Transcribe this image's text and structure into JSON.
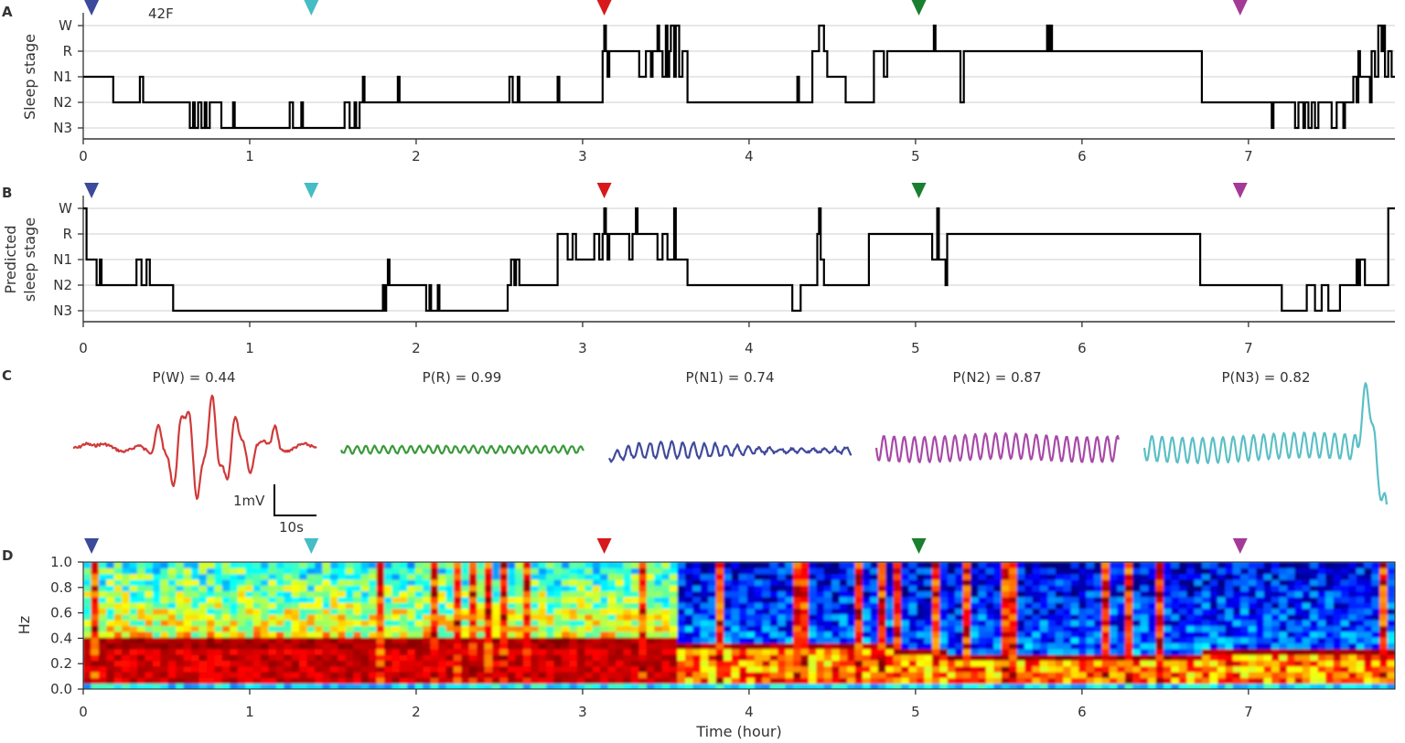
{
  "chart_data": [
    {
      "id": "A",
      "type": "line",
      "panel_label": "A",
      "title": "42F",
      "ylabel": "Sleep stage",
      "yticks": [
        "W",
        "R",
        "N1",
        "N2",
        "N3"
      ],
      "xticks": [
        0,
        1,
        2,
        3,
        4,
        5,
        6,
        7
      ],
      "xlim": [
        0,
        7.88
      ],
      "markers": [
        {
          "x": 0.05,
          "color": "#3b4a9a",
          "label": "N1"
        },
        {
          "x": 1.37,
          "color": "#46bcc4",
          "label": "N3"
        },
        {
          "x": 3.13,
          "color": "#d7191c",
          "label": "W"
        },
        {
          "x": 5.02,
          "color": "#1a7f2e",
          "label": "R"
        },
        {
          "x": 6.95,
          "color": "#a43a98",
          "label": "N2"
        }
      ],
      "hypnogram": [
        [
          0,
          2
        ],
        [
          0.18,
          3
        ],
        [
          0.34,
          2
        ],
        [
          0.36,
          3
        ],
        [
          0.64,
          4
        ],
        [
          0.66,
          3
        ],
        [
          0.67,
          4
        ],
        [
          0.69,
          3
        ],
        [
          0.71,
          4
        ],
        [
          0.73,
          3
        ],
        [
          0.74,
          4
        ],
        [
          0.76,
          3
        ],
        [
          0.83,
          4
        ],
        [
          0.9,
          3
        ],
        [
          0.91,
          4
        ],
        [
          1.24,
          3
        ],
        [
          1.26,
          4
        ],
        [
          1.31,
          3
        ],
        [
          1.32,
          4
        ],
        [
          1.57,
          3
        ],
        [
          1.6,
          4
        ],
        [
          1.63,
          3
        ],
        [
          1.64,
          4
        ],
        [
          1.66,
          3
        ],
        [
          1.68,
          2
        ],
        [
          1.69,
          3
        ],
        [
          1.89,
          2
        ],
        [
          1.9,
          3
        ],
        [
          2.56,
          2
        ],
        [
          2.58,
          3
        ],
        [
          2.61,
          2
        ],
        [
          2.62,
          3
        ],
        [
          2.85,
          2
        ],
        [
          2.86,
          3
        ],
        [
          3.12,
          1
        ],
        [
          3.13,
          0
        ],
        [
          3.14,
          1
        ],
        [
          3.15,
          2
        ],
        [
          3.16,
          1
        ],
        [
          3.34,
          2
        ],
        [
          3.38,
          1
        ],
        [
          3.41,
          2
        ],
        [
          3.42,
          1
        ],
        [
          3.45,
          0
        ],
        [
          3.46,
          1
        ],
        [
          3.48,
          2
        ],
        [
          3.5,
          0
        ],
        [
          3.51,
          2
        ],
        [
          3.52,
          1
        ],
        [
          3.53,
          0
        ],
        [
          3.55,
          2
        ],
        [
          3.56,
          0
        ],
        [
          3.58,
          2
        ],
        [
          3.6,
          1
        ],
        [
          3.63,
          3
        ],
        [
          4.29,
          2
        ],
        [
          4.3,
          3
        ],
        [
          4.38,
          1
        ],
        [
          4.42,
          0
        ],
        [
          4.45,
          1
        ],
        [
          4.47,
          2
        ],
        [
          4.58,
          3
        ],
        [
          4.75,
          1
        ],
        [
          4.81,
          2
        ],
        [
          4.83,
          1
        ],
        [
          5.11,
          0
        ],
        [
          5.12,
          1
        ],
        [
          5.27,
          3
        ],
        [
          5.29,
          1
        ],
        [
          5.79,
          0
        ],
        [
          5.8,
          1
        ],
        [
          5.81,
          0
        ],
        [
          5.82,
          1
        ],
        [
          6.72,
          3
        ],
        [
          7.14,
          4
        ],
        [
          7.15,
          3
        ],
        [
          7.28,
          4
        ],
        [
          7.3,
          3
        ],
        [
          7.33,
          4
        ],
        [
          7.34,
          3
        ],
        [
          7.36,
          4
        ],
        [
          7.38,
          3
        ],
        [
          7.4,
          4
        ],
        [
          7.42,
          3
        ],
        [
          7.5,
          4
        ],
        [
          7.53,
          3
        ],
        [
          7.57,
          4
        ],
        [
          7.58,
          3
        ],
        [
          7.63,
          2
        ],
        [
          7.65,
          3
        ],
        [
          7.66,
          1
        ],
        [
          7.67,
          2
        ],
        [
          7.73,
          3
        ],
        [
          7.74,
          1
        ],
        [
          7.76,
          2
        ],
        [
          7.78,
          0
        ],
        [
          7.8,
          1
        ],
        [
          7.81,
          0
        ],
        [
          7.82,
          2
        ],
        [
          7.84,
          1
        ],
        [
          7.86,
          2
        ],
        [
          7.88,
          2
        ]
      ]
    },
    {
      "id": "B",
      "type": "line",
      "panel_label": "B",
      "ylabel": "Predicted\nsleep stage",
      "ylabel_lines": [
        "Predicted",
        "sleep stage"
      ],
      "yticks": [
        "W",
        "R",
        "N1",
        "N2",
        "N3"
      ],
      "xticks": [
        0,
        1,
        2,
        3,
        4,
        5,
        6,
        7
      ],
      "xlim": [
        0,
        7.88
      ],
      "markers": [
        {
          "x": 0.05,
          "color": "#3b4a9a",
          "label": "N1"
        },
        {
          "x": 1.37,
          "color": "#46bcc4",
          "label": "N3"
        },
        {
          "x": 3.13,
          "color": "#d7191c",
          "label": "W"
        },
        {
          "x": 5.02,
          "color": "#1a7f2e",
          "label": "R"
        },
        {
          "x": 6.95,
          "color": "#a43a98",
          "label": "N2"
        }
      ],
      "hypnogram": [
        [
          0,
          0
        ],
        [
          0.02,
          2
        ],
        [
          0.08,
          3
        ],
        [
          0.1,
          2
        ],
        [
          0.11,
          3
        ],
        [
          0.32,
          2
        ],
        [
          0.35,
          3
        ],
        [
          0.38,
          2
        ],
        [
          0.4,
          3
        ],
        [
          0.54,
          4
        ],
        [
          1.8,
          3
        ],
        [
          1.81,
          4
        ],
        [
          1.82,
          3
        ],
        [
          1.83,
          2
        ],
        [
          1.84,
          3
        ],
        [
          2.06,
          4
        ],
        [
          2.08,
          3
        ],
        [
          2.09,
          4
        ],
        [
          2.13,
          3
        ],
        [
          2.14,
          4
        ],
        [
          2.55,
          3
        ],
        [
          2.57,
          2
        ],
        [
          2.59,
          3
        ],
        [
          2.6,
          2
        ],
        [
          2.62,
          3
        ],
        [
          2.85,
          1
        ],
        [
          2.91,
          2
        ],
        [
          2.94,
          1
        ],
        [
          2.96,
          2
        ],
        [
          3.07,
          1
        ],
        [
          3.1,
          2
        ],
        [
          3.12,
          1
        ],
        [
          3.13,
          0
        ],
        [
          3.14,
          1
        ],
        [
          3.15,
          2
        ],
        [
          3.16,
          1
        ],
        [
          3.28,
          2
        ],
        [
          3.3,
          1
        ],
        [
          3.32,
          0
        ],
        [
          3.33,
          1
        ],
        [
          3.45,
          2
        ],
        [
          3.48,
          1
        ],
        [
          3.51,
          2
        ],
        [
          3.55,
          0
        ],
        [
          3.56,
          2
        ],
        [
          3.63,
          3
        ],
        [
          4.26,
          4
        ],
        [
          4.31,
          3
        ],
        [
          4.41,
          1
        ],
        [
          4.42,
          0
        ],
        [
          4.43,
          2
        ],
        [
          4.45,
          3
        ],
        [
          4.72,
          1
        ],
        [
          5.1,
          2
        ],
        [
          5.13,
          0
        ],
        [
          5.14,
          2
        ],
        [
          5.18,
          3
        ],
        [
          5.19,
          1
        ],
        [
          6.71,
          3
        ],
        [
          7.2,
          4
        ],
        [
          7.35,
          3
        ],
        [
          7.4,
          4
        ],
        [
          7.44,
          3
        ],
        [
          7.48,
          4
        ],
        [
          7.55,
          3
        ],
        [
          7.65,
          2
        ],
        [
          7.66,
          3
        ],
        [
          7.67,
          2
        ],
        [
          7.7,
          3
        ],
        [
          7.84,
          0
        ],
        [
          7.88,
          0
        ]
      ]
    },
    {
      "id": "C",
      "type": "line",
      "panel_label": "C",
      "scale_bar": {
        "y_label": "1mV",
        "x_label": "10s"
      },
      "traces": [
        {
          "label": "P(W) = 0.44",
          "color": "#d03a3a",
          "kind": "wake"
        },
        {
          "label": "P(R) = 0.99",
          "color": "#3a9a3a",
          "kind": "rem"
        },
        {
          "label": "P(N1) = 0.74",
          "color": "#404a9c",
          "kind": "n1"
        },
        {
          "label": "P(N2) = 0.87",
          "color": "#a84aa8",
          "kind": "n2"
        },
        {
          "label": "P(N3) = 0.82",
          "color": "#5bbfc6",
          "kind": "n3"
        }
      ]
    },
    {
      "id": "D",
      "type": "heatmap",
      "panel_label": "D",
      "ylabel": "Hz",
      "xlabel": "Time (hour)",
      "yticks": [
        "0.0",
        "0.2",
        "0.4",
        "0.6",
        "0.8",
        "1.0"
      ],
      "ylim": [
        0,
        1.0
      ],
      "xticks": [
        0,
        1,
        2,
        3,
        4,
        5,
        6,
        7
      ],
      "xlim": [
        0,
        7.88
      ],
      "colormap": "jet",
      "markers": [
        {
          "x": 0.05,
          "color": "#3b4a9a",
          "label": "N1"
        },
        {
          "x": 1.37,
          "color": "#46bcc4",
          "label": "N3"
        },
        {
          "x": 3.13,
          "color": "#d7191c",
          "label": "W"
        },
        {
          "x": 5.02,
          "color": "#1a7f2e",
          "label": "R"
        },
        {
          "x": 6.95,
          "color": "#a43a98",
          "label": "N2"
        }
      ],
      "resp_rate_segments": [
        {
          "start": 0,
          "end": 3.58,
          "hz": 0.36
        },
        {
          "start": 3.58,
          "end": 4.9,
          "hz": 0.32
        },
        {
          "start": 4.9,
          "end": 5.2,
          "hz": 0.28
        },
        {
          "start": 5.2,
          "end": 6.7,
          "hz": 0.25
        },
        {
          "start": 6.7,
          "end": 7.88,
          "hz": 0.3
        }
      ]
    }
  ]
}
